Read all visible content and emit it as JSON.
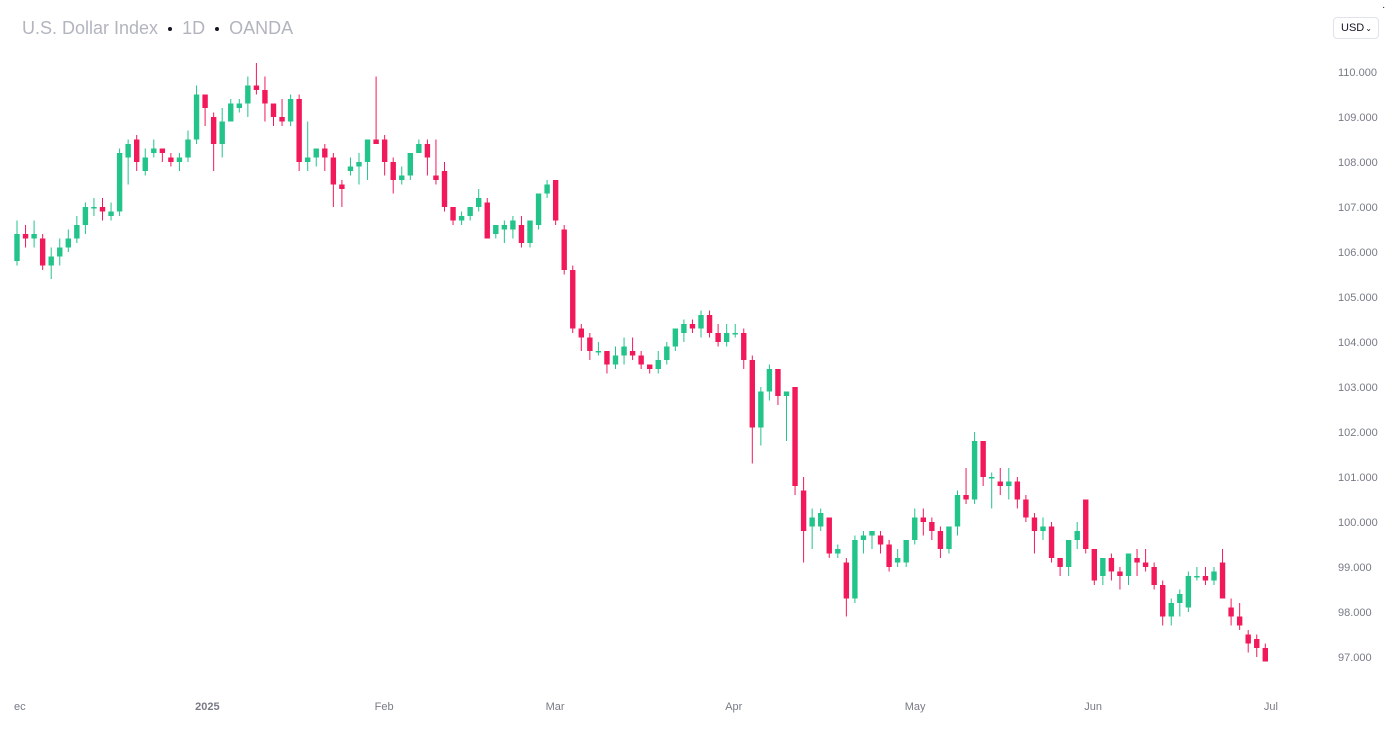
{
  "header": {
    "symbol": "U.S. Dollar Index",
    "interval": "1D",
    "source": "OANDA"
  },
  "currency_select": {
    "value": "USD"
  },
  "colors": {
    "up": "#22c48a",
    "down": "#f2195a",
    "axis_text": "#787b86",
    "legend_text": "#b2b5be"
  },
  "chart_data": {
    "type": "candlestick",
    "title": "U.S. Dollar Index · 1D · OANDA",
    "ylim": [
      96.4,
      110.4
    ],
    "yticks": [
      97,
      98,
      99,
      100,
      101,
      102,
      103,
      104,
      105,
      106,
      107,
      108,
      109,
      110
    ],
    "ytick_labels": [
      "97.000",
      "98.000",
      "99.000",
      "100.000",
      "101.000",
      "102.000",
      "103.000",
      "104.000",
      "105.000",
      "106.000",
      "107.000",
      "108.000",
      "109.000",
      "110.000"
    ],
    "xticks": [
      {
        "label": "ec",
        "index": 0,
        "bold": false
      },
      {
        "label": "2025",
        "index": 22,
        "bold": true
      },
      {
        "label": "Feb",
        "index": 43,
        "bold": false
      },
      {
        "label": "Mar",
        "index": 63,
        "bold": false
      },
      {
        "label": "Apr",
        "index": 84,
        "bold": false
      },
      {
        "label": "May",
        "index": 105,
        "bold": false
      },
      {
        "label": "Jun",
        "index": 126,
        "bold": false
      },
      {
        "label": "Jul",
        "index": 147,
        "bold": false
      }
    ],
    "candles": [
      [
        105.8,
        106.4,
        106.7,
        105.7
      ],
      [
        106.4,
        106.3,
        106.6,
        106.1
      ],
      [
        106.3,
        106.4,
        106.7,
        106.1
      ],
      [
        106.3,
        105.7,
        106.4,
        105.6
      ],
      [
        105.7,
        105.9,
        106.1,
        105.4
      ],
      [
        105.9,
        106.1,
        106.3,
        105.7
      ],
      [
        106.1,
        106.3,
        106.5,
        106.0
      ],
      [
        106.3,
        106.6,
        106.8,
        106.2
      ],
      [
        106.6,
        107.0,
        107.1,
        106.4
      ],
      [
        107.0,
        107.0,
        107.2,
        106.8
      ],
      [
        107.0,
        106.9,
        107.2,
        106.7
      ],
      [
        106.8,
        106.9,
        107.1,
        106.7
      ],
      [
        106.9,
        108.2,
        108.3,
        106.8
      ],
      [
        108.1,
        108.4,
        108.5,
        107.5
      ],
      [
        108.5,
        108.0,
        108.6,
        107.8
      ],
      [
        107.8,
        108.1,
        108.3,
        107.7
      ],
      [
        108.2,
        108.3,
        108.5,
        108.1
      ],
      [
        108.3,
        108.2,
        108.3,
        108.0
      ],
      [
        108.1,
        108.0,
        108.2,
        107.9
      ],
      [
        108.0,
        108.1,
        108.2,
        107.8
      ],
      [
        108.1,
        108.5,
        108.7,
        108.0
      ],
      [
        108.5,
        109.5,
        109.7,
        108.4
      ],
      [
        109.5,
        109.2,
        109.5,
        108.8
      ],
      [
        109.0,
        108.4,
        109.1,
        107.8
      ],
      [
        108.4,
        108.9,
        109.2,
        108.1
      ],
      [
        108.9,
        109.3,
        109.4,
        108.9
      ],
      [
        109.2,
        109.3,
        109.4,
        109.1
      ],
      [
        109.3,
        109.7,
        109.9,
        109.0
      ],
      [
        109.7,
        109.6,
        110.2,
        109.5
      ],
      [
        109.6,
        109.3,
        109.9,
        108.9
      ],
      [
        109.3,
        109.0,
        109.3,
        108.8
      ],
      [
        109.0,
        108.9,
        109.4,
        108.8
      ],
      [
        108.9,
        109.4,
        109.5,
        108.8
      ],
      [
        109.4,
        108.0,
        109.5,
        107.8
      ],
      [
        108.0,
        108.1,
        108.9,
        107.8
      ],
      [
        108.1,
        108.3,
        108.3,
        107.9
      ],
      [
        108.3,
        108.1,
        108.4,
        107.8
      ],
      [
        108.1,
        107.5,
        108.2,
        107.0
      ],
      [
        107.5,
        107.4,
        107.6,
        107.0
      ],
      [
        107.8,
        107.9,
        108.1,
        107.7
      ],
      [
        107.9,
        108.0,
        108.2,
        107.5
      ],
      [
        108.0,
        108.5,
        108.5,
        107.6
      ],
      [
        108.5,
        108.4,
        109.9,
        108.4
      ],
      [
        108.5,
        108.0,
        108.6,
        107.7
      ],
      [
        108.0,
        107.6,
        108.1,
        107.3
      ],
      [
        107.6,
        107.7,
        107.9,
        107.5
      ],
      [
        107.7,
        108.2,
        108.2,
        107.6
      ],
      [
        108.2,
        108.4,
        108.5,
        108.2
      ],
      [
        108.4,
        108.1,
        108.5,
        107.7
      ],
      [
        107.7,
        107.6,
        108.5,
        107.5
      ],
      [
        107.8,
        107.0,
        108.0,
        106.9
      ],
      [
        107.0,
        106.7,
        107.0,
        106.6
      ],
      [
        106.7,
        106.8,
        106.9,
        106.6
      ],
      [
        106.8,
        107.0,
        107.0,
        106.7
      ],
      [
        107.0,
        107.2,
        107.4,
        106.9
      ],
      [
        107.1,
        106.3,
        107.2,
        106.3
      ],
      [
        106.4,
        106.6,
        106.6,
        106.3
      ],
      [
        106.5,
        106.6,
        106.7,
        106.2
      ],
      [
        106.5,
        106.7,
        106.8,
        106.3
      ],
      [
        106.6,
        106.2,
        106.8,
        106.1
      ],
      [
        106.2,
        106.7,
        106.7,
        106.1
      ],
      [
        106.6,
        107.3,
        107.3,
        106.5
      ],
      [
        107.3,
        107.5,
        107.6,
        107.2
      ],
      [
        107.6,
        106.7,
        107.6,
        106.6
      ],
      [
        106.5,
        105.6,
        106.6,
        105.5
      ],
      [
        105.6,
        104.3,
        105.7,
        104.2
      ],
      [
        104.3,
        104.1,
        104.4,
        103.8
      ],
      [
        104.1,
        103.8,
        104.2,
        103.6
      ],
      [
        103.8,
        103.8,
        104.0,
        103.7
      ],
      [
        103.8,
        103.5,
        103.8,
        103.3
      ],
      [
        103.5,
        103.7,
        103.9,
        103.4
      ],
      [
        103.7,
        103.9,
        104.1,
        103.5
      ],
      [
        103.8,
        103.7,
        104.1,
        103.6
      ],
      [
        103.7,
        103.5,
        103.8,
        103.4
      ],
      [
        103.5,
        103.4,
        103.5,
        103.3
      ],
      [
        103.4,
        103.6,
        103.8,
        103.3
      ],
      [
        103.6,
        103.9,
        104.0,
        103.5
      ],
      [
        103.9,
        104.3,
        104.3,
        103.8
      ],
      [
        104.2,
        104.4,
        104.5,
        104.0
      ],
      [
        104.4,
        104.3,
        104.5,
        104.2
      ],
      [
        104.3,
        104.6,
        104.7,
        104.1
      ],
      [
        104.6,
        104.2,
        104.7,
        104.1
      ],
      [
        104.2,
        104.0,
        104.4,
        103.9
      ],
      [
        104.0,
        104.2,
        104.4,
        103.9
      ],
      [
        104.2,
        104.2,
        104.4,
        104.1
      ],
      [
        104.2,
        103.6,
        104.3,
        103.4
      ],
      [
        103.6,
        102.1,
        103.7,
        101.3
      ],
      [
        102.1,
        102.9,
        103.0,
        101.7
      ],
      [
        102.9,
        103.4,
        103.5,
        102.7
      ],
      [
        103.4,
        102.8,
        103.4,
        102.6
      ],
      [
        102.8,
        102.9,
        102.9,
        101.8
      ],
      [
        103.0,
        100.8,
        103.0,
        100.6
      ],
      [
        100.7,
        99.8,
        101.0,
        99.1
      ],
      [
        99.9,
        100.1,
        100.3,
        99.4
      ],
      [
        99.9,
        100.2,
        100.3,
        99.8
      ],
      [
        100.1,
        99.3,
        100.1,
        99.2
      ],
      [
        99.3,
        99.4,
        99.5,
        99.2
      ],
      [
        99.1,
        98.3,
        99.2,
        97.9
      ],
      [
        98.3,
        99.6,
        99.7,
        98.2
      ],
      [
        99.6,
        99.7,
        99.8,
        99.3
      ],
      [
        99.7,
        99.8,
        99.8,
        99.4
      ],
      [
        99.7,
        99.5,
        99.8,
        99.3
      ],
      [
        99.5,
        99.0,
        99.6,
        98.9
      ],
      [
        99.1,
        99.2,
        99.4,
        99.0
      ],
      [
        99.1,
        99.6,
        99.6,
        99.0
      ],
      [
        99.6,
        100.1,
        100.3,
        99.5
      ],
      [
        100.1,
        100.0,
        100.3,
        99.7
      ],
      [
        100.0,
        99.8,
        100.1,
        99.6
      ],
      [
        99.8,
        99.4,
        99.9,
        99.2
      ],
      [
        99.4,
        99.9,
        99.9,
        99.3
      ],
      [
        99.9,
        100.6,
        100.7,
        99.7
      ],
      [
        100.6,
        100.5,
        101.2,
        100.4
      ],
      [
        100.5,
        101.8,
        102.0,
        100.4
      ],
      [
        101.8,
        101.0,
        101.8,
        100.8
      ],
      [
        101.0,
        101.0,
        101.1,
        100.3
      ],
      [
        100.9,
        100.8,
        101.2,
        100.6
      ],
      [
        100.8,
        100.9,
        101.2,
        100.5
      ],
      [
        100.9,
        100.5,
        101.0,
        100.3
      ],
      [
        100.5,
        100.1,
        100.6,
        100.0
      ],
      [
        100.1,
        99.8,
        100.2,
        99.3
      ],
      [
        99.8,
        99.9,
        100.1,
        99.6
      ],
      [
        99.9,
        99.2,
        100.0,
        99.1
      ],
      [
        99.2,
        99.0,
        99.2,
        98.8
      ],
      [
        99.0,
        99.6,
        99.6,
        98.8
      ],
      [
        99.6,
        99.8,
        100.0,
        99.4
      ],
      [
        100.5,
        99.4,
        100.5,
        99.3
      ],
      [
        99.4,
        98.7,
        99.4,
        98.6
      ],
      [
        98.8,
        99.2,
        99.2,
        98.6
      ],
      [
        99.2,
        98.9,
        99.3,
        98.7
      ],
      [
        98.9,
        98.8,
        99.0,
        98.5
      ],
      [
        98.8,
        99.3,
        99.3,
        98.6
      ],
      [
        99.2,
        99.1,
        99.4,
        98.8
      ],
      [
        99.1,
        99.0,
        99.4,
        98.9
      ],
      [
        99.0,
        98.6,
        99.1,
        98.5
      ],
      [
        98.6,
        97.9,
        98.7,
        97.7
      ],
      [
        97.9,
        98.2,
        98.3,
        97.7
      ],
      [
        98.2,
        98.4,
        98.5,
        97.9
      ],
      [
        98.1,
        98.8,
        98.9,
        98.0
      ],
      [
        98.8,
        98.8,
        99.0,
        98.7
      ],
      [
        98.8,
        98.7,
        99.0,
        98.6
      ],
      [
        98.7,
        98.9,
        99.0,
        98.6
      ],
      [
        99.1,
        98.3,
        99.4,
        98.3
      ],
      [
        98.1,
        97.9,
        98.3,
        97.7
      ],
      [
        97.9,
        97.7,
        98.2,
        97.6
      ],
      [
        97.5,
        97.3,
        97.6,
        97.1
      ],
      [
        97.4,
        97.2,
        97.5,
        97.0
      ],
      [
        97.2,
        96.9,
        97.3,
        96.9
      ]
    ]
  }
}
